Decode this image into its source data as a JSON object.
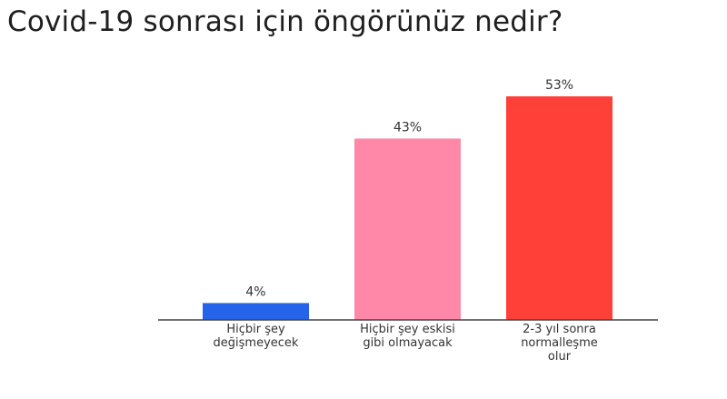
{
  "chart_data": {
    "type": "bar",
    "title": "Covid-19 sonrası için öngörünüz nedir?",
    "categories": [
      [
        "Hiçbir şey",
        "değişmeyecek"
      ],
      [
        "Hiçbir şey eskisi",
        "gibi olmayacak"
      ],
      [
        "2-3 yıl sonra",
        "normalleşme",
        "olur"
      ]
    ],
    "values": [
      4,
      43,
      53
    ],
    "value_labels": [
      "4%",
      "43%",
      "53%"
    ],
    "colors": [
      "#2563eb",
      "#ff88a8",
      "#ff4038"
    ],
    "unit": "%",
    "ylim": [
      0,
      53
    ],
    "xlabel": "",
    "ylabel": "",
    "grid": false,
    "legend": "none"
  }
}
